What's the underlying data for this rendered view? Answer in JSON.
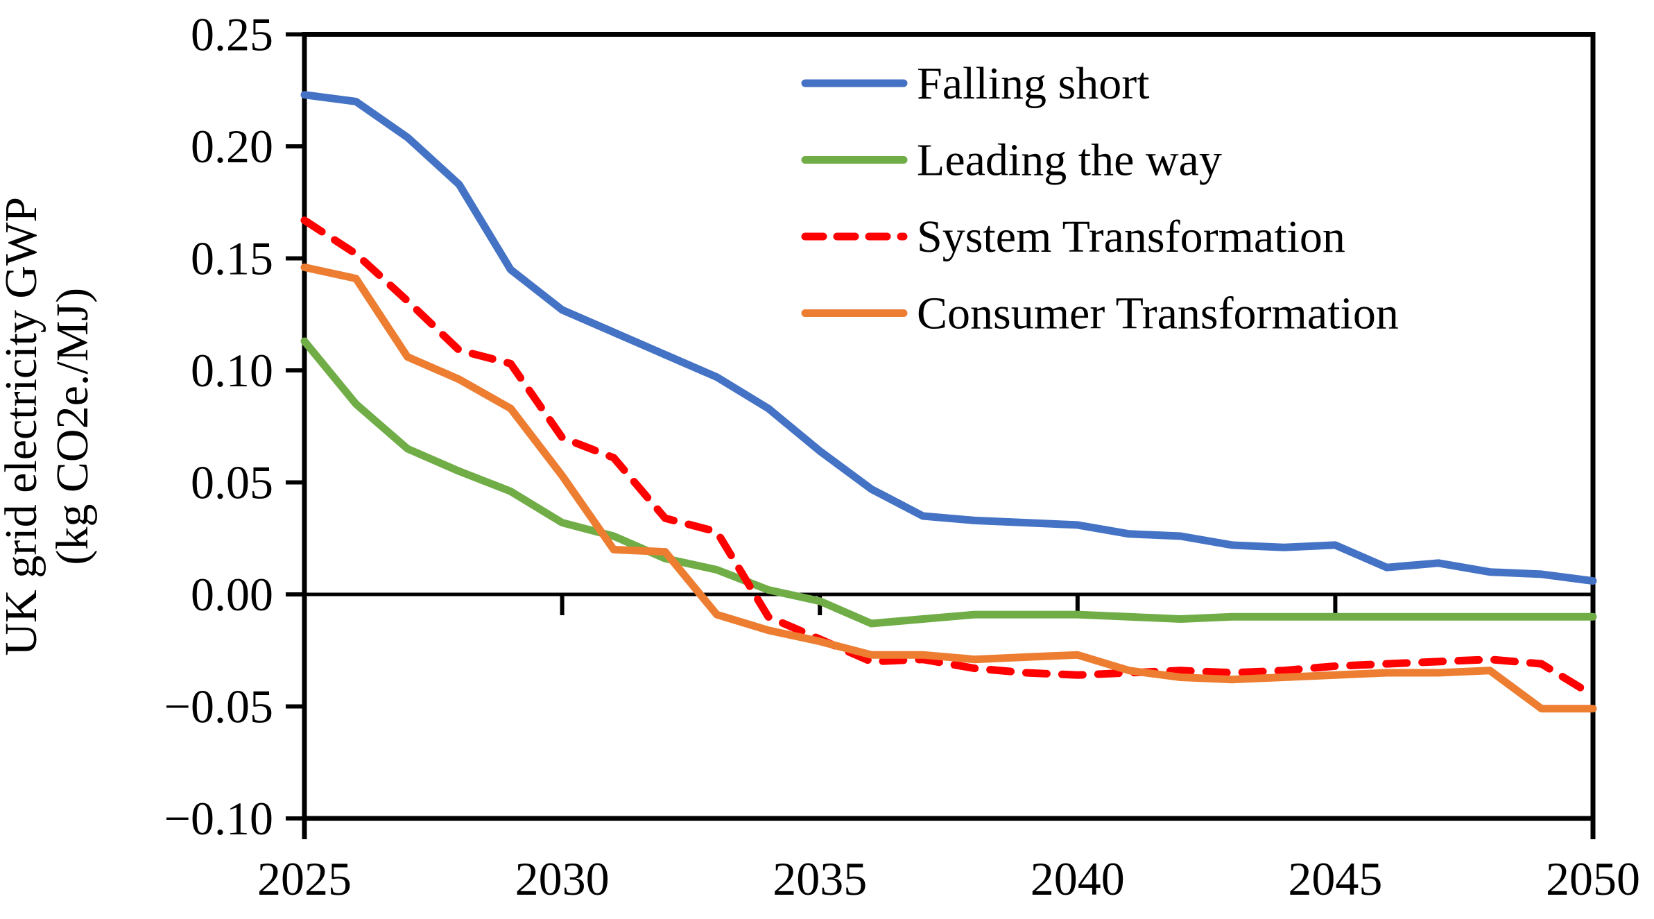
{
  "figure": {
    "y_axis_title_line1": "UK grid electricity GWP",
    "y_axis_title_line2": "(kg CO2e./MJ)"
  },
  "chart_data": {
    "type": "line",
    "title": "",
    "xlabel": "",
    "ylabel": "UK grid electricity GWP (kg CO2e./MJ)",
    "grid": "off",
    "legend_position": "upper-right-inside",
    "xlim": [
      2025,
      2050
    ],
    "ylim": [
      -0.1,
      0.25
    ],
    "x": [
      2025,
      2026,
      2027,
      2028,
      2029,
      2030,
      2031,
      2032,
      2033,
      2034,
      2035,
      2036,
      2037,
      2038,
      2039,
      2040,
      2041,
      2042,
      2043,
      2044,
      2045,
      2046,
      2047,
      2048,
      2049,
      2050
    ],
    "x_tick_labels": [
      "2025",
      "2030",
      "2035",
      "2040",
      "2045",
      "2050"
    ],
    "x_tick_years": [
      2025,
      2030,
      2035,
      2040,
      2045,
      2050
    ],
    "y_ticks": [
      0.25,
      0.2,
      0.15,
      0.1,
      0.05,
      0.0,
      -0.05,
      -0.1
    ],
    "y_tick_labels": [
      "0.25",
      "0.20",
      "0.15",
      "0.10",
      "0.05",
      "0.00",
      "−0.05",
      "−0.10"
    ],
    "axis_color": "#000000",
    "series": [
      {
        "name": "Falling short",
        "color": "#4472C4",
        "style": "solid",
        "values": [
          0.223,
          0.22,
          0.204,
          0.183,
          0.145,
          0.127,
          0.117,
          0.107,
          0.097,
          0.083,
          0.064,
          0.047,
          0.035,
          0.033,
          0.032,
          0.031,
          0.027,
          0.026,
          0.022,
          0.021,
          0.022,
          0.012,
          0.014,
          0.01,
          0.009,
          0.006
        ]
      },
      {
        "name": "Leading the way",
        "color": "#70AD47",
        "style": "solid",
        "values": [
          0.113,
          0.085,
          0.065,
          0.055,
          0.046,
          0.032,
          0.026,
          0.016,
          0.011,
          0.002,
          -0.003,
          -0.013,
          -0.011,
          -0.009,
          -0.009,
          -0.009,
          -0.01,
          -0.011,
          -0.01,
          -0.01,
          -0.01,
          -0.01,
          -0.01,
          -0.01,
          -0.01,
          -0.01
        ]
      },
      {
        "name": "System Transformation",
        "color": "#FF0000",
        "style": "dashed",
        "values": [
          0.167,
          0.152,
          0.131,
          0.109,
          0.103,
          0.07,
          0.061,
          0.034,
          0.028,
          -0.01,
          -0.02,
          -0.03,
          -0.029,
          -0.033,
          -0.035,
          -0.036,
          -0.035,
          -0.034,
          -0.035,
          -0.034,
          -0.032,
          -0.031,
          -0.03,
          -0.029,
          -0.031,
          -0.045
        ]
      },
      {
        "name": "Consumer Transformation",
        "color": "#ED7D31",
        "style": "solid",
        "values": [
          0.146,
          0.141,
          0.106,
          0.096,
          0.083,
          0.053,
          0.02,
          0.019,
          -0.009,
          -0.016,
          -0.021,
          -0.027,
          -0.027,
          -0.029,
          -0.028,
          -0.027,
          -0.034,
          -0.037,
          -0.038,
          -0.037,
          -0.036,
          -0.035,
          -0.035,
          -0.034,
          -0.051,
          -0.051
        ]
      }
    ]
  }
}
